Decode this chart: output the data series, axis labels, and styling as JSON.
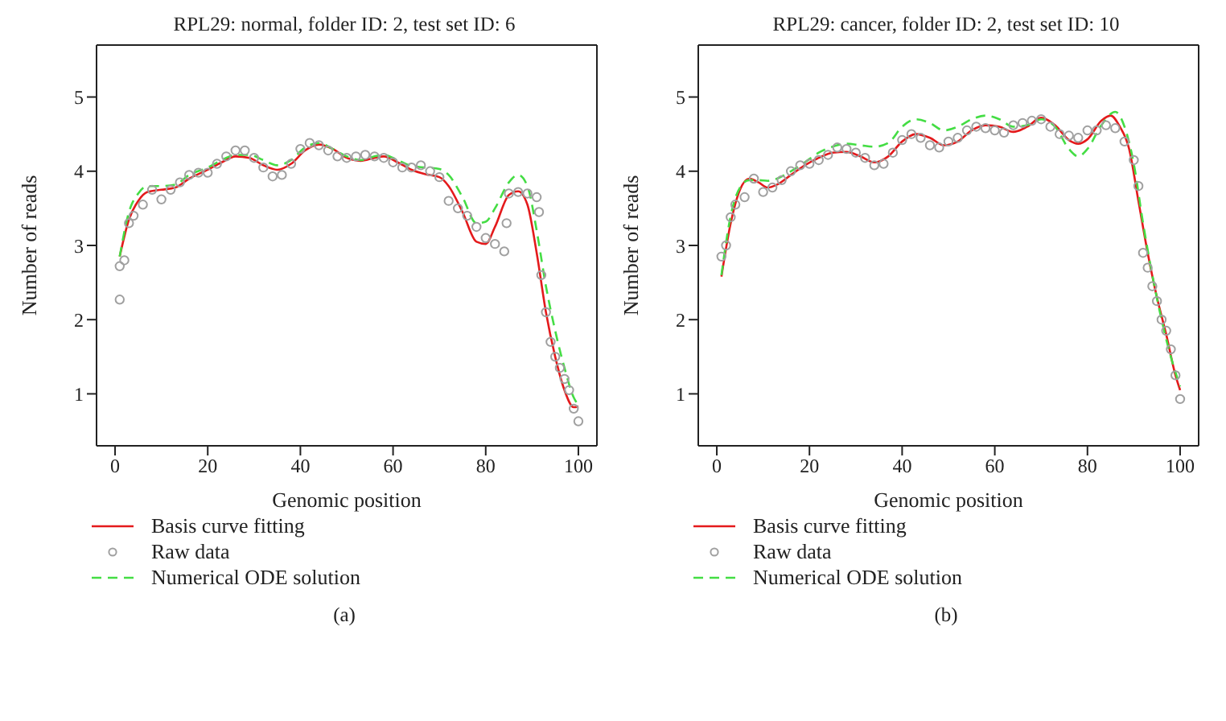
{
  "chart_data": [
    {
      "type": "line",
      "title": "RPL29: normal, folder ID: 2, test set ID: 6",
      "xlabel": "Genomic position",
      "ylabel": "Number of reads",
      "xlim": [
        -4,
        104
      ],
      "xticks": [
        0,
        20,
        40,
        60,
        80,
        100
      ],
      "ylim": [
        0.3,
        5.7
      ],
      "yticks": [
        1,
        2,
        3,
        4,
        5
      ],
      "legend": "bottom",
      "annotations": [
        "(a)"
      ],
      "series": [
        {
          "name": "Basis curve fitting",
          "line_style": "solid",
          "marker": "none",
          "color": "#e41a1c",
          "x": [
            1,
            3,
            5,
            7,
            10,
            13,
            16,
            20,
            23,
            26,
            29,
            32,
            35,
            38,
            41,
            44,
            47,
            50,
            53,
            56,
            58,
            61,
            64,
            67,
            70,
            72,
            75,
            78,
            80,
            82,
            85,
            87,
            89,
            91,
            93,
            95,
            97,
            99,
            100
          ],
          "values": [
            2.85,
            3.35,
            3.6,
            3.72,
            3.75,
            3.78,
            3.9,
            4.02,
            4.12,
            4.2,
            4.18,
            4.08,
            4.02,
            4.1,
            4.28,
            4.36,
            4.3,
            4.18,
            4.14,
            4.18,
            4.2,
            4.12,
            4.02,
            3.96,
            3.92,
            3.8,
            3.45,
            3.05,
            3.02,
            3.25,
            3.68,
            3.73,
            3.55,
            2.9,
            2.1,
            1.5,
            1.05,
            0.82,
            0.83
          ]
        },
        {
          "name": "Raw data",
          "type": "scatter",
          "marker": "circle",
          "color": "#a0a0a0",
          "x": [
            1,
            1,
            2,
            3,
            4,
            6,
            8,
            10,
            12,
            14,
            16,
            18,
            20,
            22,
            24,
            26,
            28,
            30,
            32,
            34,
            36,
            38,
            40,
            42,
            44,
            46,
            48,
            50,
            52,
            54,
            56,
            58,
            60,
            62,
            64,
            66,
            68,
            70,
            72,
            74,
            76,
            78,
            80,
            82,
            84,
            84.5,
            85,
            87,
            89,
            91,
            91.5,
            92,
            93,
            94,
            95,
            96,
            97,
            98,
            99,
            100
          ],
          "values": [
            2.27,
            2.72,
            2.8,
            3.3,
            3.4,
            3.55,
            3.75,
            3.62,
            3.75,
            3.85,
            3.95,
            3.98,
            3.98,
            4.1,
            4.2,
            4.28,
            4.28,
            4.18,
            4.05,
            3.93,
            3.95,
            4.1,
            4.3,
            4.38,
            4.35,
            4.28,
            4.2,
            4.18,
            4.2,
            4.22,
            4.2,
            4.18,
            4.12,
            4.05,
            4.05,
            4.08,
            4.0,
            3.92,
            3.6,
            3.5,
            3.4,
            3.25,
            3.1,
            3.02,
            2.92,
            3.3,
            3.7,
            3.72,
            3.7,
            3.65,
            3.45,
            2.6,
            2.1,
            1.7,
            1.5,
            1.35,
            1.2,
            1.05,
            0.8,
            0.63
          ]
        },
        {
          "name": "Numerical ODE solution",
          "line_style": "dashed",
          "marker": "none",
          "color": "#44dd44",
          "x": [
            1,
            3,
            5,
            7,
            10,
            13,
            16,
            20,
            23,
            26,
            29,
            32,
            35,
            38,
            41,
            44,
            47,
            50,
            53,
            56,
            58,
            61,
            64,
            67,
            70,
            72,
            75,
            78,
            80,
            82,
            85,
            87,
            89,
            91,
            93,
            95,
            97,
            99,
            100
          ],
          "values": [
            2.85,
            3.45,
            3.7,
            3.8,
            3.8,
            3.82,
            3.95,
            4.05,
            4.15,
            4.22,
            4.22,
            4.15,
            4.08,
            4.15,
            4.32,
            4.38,
            4.3,
            4.2,
            4.15,
            4.2,
            4.22,
            4.15,
            4.07,
            4.05,
            4.03,
            3.95,
            3.65,
            3.3,
            3.32,
            3.5,
            3.85,
            3.95,
            3.8,
            3.2,
            2.45,
            1.85,
            1.35,
            0.95,
            0.85
          ]
        }
      ]
    },
    {
      "type": "line",
      "title": "RPL29: cancer, folder ID: 2, test set ID: 10",
      "xlabel": "Genomic position",
      "ylabel": "Number of reads",
      "xlim": [
        -4,
        104
      ],
      "xticks": [
        0,
        20,
        40,
        60,
        80,
        100
      ],
      "ylim": [
        0.3,
        5.7
      ],
      "yticks": [
        1,
        2,
        3,
        4,
        5
      ],
      "legend": "bottom",
      "annotations": [
        "(b)"
      ],
      "series": [
        {
          "name": "Basis curve fitting",
          "line_style": "solid",
          "marker": "none",
          "color": "#e41a1c",
          "x": [
            1,
            3,
            5,
            7,
            9,
            11,
            13,
            16,
            19,
            22,
            25,
            28,
            31,
            34,
            37,
            40,
            43,
            46,
            49,
            52,
            55,
            58,
            61,
            64,
            67,
            70,
            73,
            76,
            78,
            80,
            83,
            85,
            87,
            89,
            91,
            93,
            95,
            97,
            99,
            100
          ],
          "values": [
            2.58,
            3.3,
            3.75,
            3.9,
            3.85,
            3.78,
            3.82,
            3.95,
            4.08,
            4.18,
            4.25,
            4.26,
            4.2,
            4.12,
            4.2,
            4.4,
            4.5,
            4.45,
            4.35,
            4.4,
            4.55,
            4.62,
            4.6,
            4.53,
            4.6,
            4.72,
            4.62,
            4.42,
            4.37,
            4.43,
            4.68,
            4.75,
            4.6,
            4.3,
            3.6,
            2.9,
            2.3,
            1.8,
            1.25,
            1.05
          ]
        },
        {
          "name": "Raw data",
          "type": "scatter",
          "marker": "circle",
          "color": "#a0a0a0",
          "x": [
            1,
            2,
            3,
            4,
            6,
            8,
            10,
            12,
            14,
            16,
            18,
            20,
            22,
            24,
            26,
            28,
            30,
            32,
            34,
            36,
            38,
            40,
            42,
            44,
            46,
            48,
            50,
            52,
            54,
            56,
            58,
            60,
            62,
            64,
            66,
            68,
            70,
            72,
            74,
            76,
            78,
            80,
            82,
            84,
            86,
            88,
            90,
            91,
            92,
            93,
            94,
            95,
            96,
            97,
            98,
            99,
            100
          ],
          "values": [
            2.85,
            3.0,
            3.38,
            3.55,
            3.65,
            3.9,
            3.72,
            3.78,
            3.88,
            4.0,
            4.08,
            4.1,
            4.15,
            4.22,
            4.32,
            4.3,
            4.25,
            4.18,
            4.08,
            4.1,
            4.25,
            4.42,
            4.5,
            4.45,
            4.35,
            4.32,
            4.4,
            4.45,
            4.55,
            4.6,
            4.58,
            4.55,
            4.52,
            4.62,
            4.65,
            4.68,
            4.7,
            4.6,
            4.5,
            4.48,
            4.45,
            4.55,
            4.55,
            4.62,
            4.58,
            4.4,
            4.15,
            3.8,
            2.9,
            2.7,
            2.45,
            2.25,
            2.0,
            1.85,
            1.6,
            1.25,
            0.93
          ]
        },
        {
          "name": "Numerical ODE solution",
          "line_style": "dashed",
          "marker": "none",
          "color": "#44dd44",
          "x": [
            1,
            3,
            5,
            7,
            9,
            11,
            13,
            16,
            19,
            22,
            25,
            28,
            31,
            34,
            37,
            40,
            43,
            46,
            49,
            52,
            55,
            58,
            61,
            64,
            67,
            70,
            73,
            76,
            78,
            80,
            83,
            86,
            88,
            90,
            92,
            94,
            96,
            98,
            100
          ],
          "values": [
            2.6,
            3.4,
            3.78,
            3.88,
            3.88,
            3.87,
            3.9,
            4.0,
            4.12,
            4.25,
            4.33,
            4.37,
            4.35,
            4.33,
            4.38,
            4.6,
            4.7,
            4.65,
            4.55,
            4.6,
            4.7,
            4.75,
            4.7,
            4.6,
            4.62,
            4.7,
            4.6,
            4.3,
            4.2,
            4.3,
            4.62,
            4.8,
            4.6,
            4.1,
            3.3,
            2.6,
            2.0,
            1.5,
            1.1
          ]
        }
      ]
    }
  ]
}
